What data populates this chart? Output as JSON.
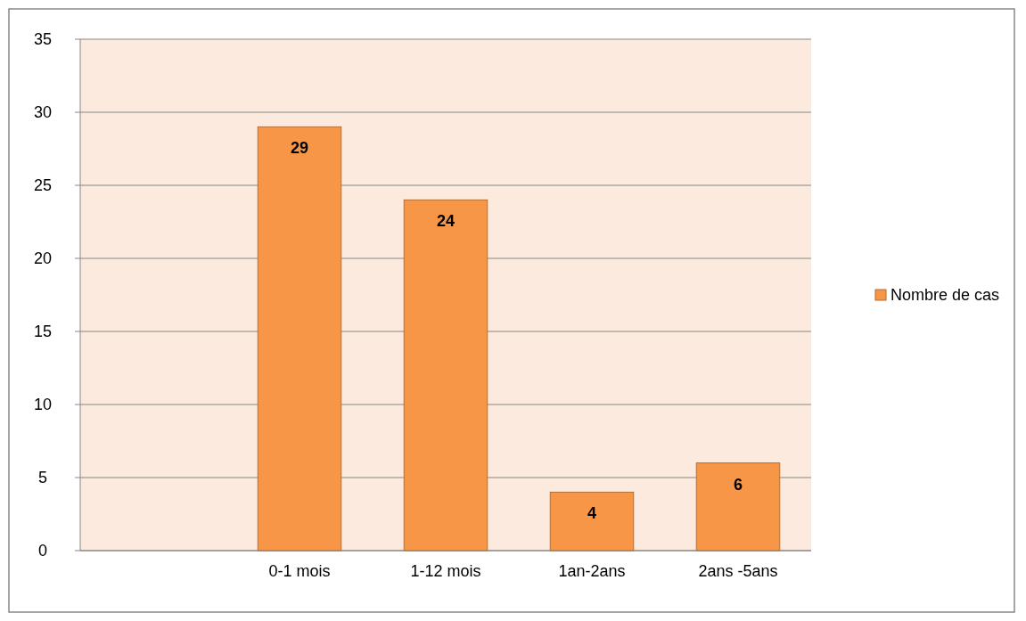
{
  "chart_data": {
    "type": "bar",
    "categories": [
      null,
      "0-1 mois",
      "1-12 mois",
      "1an-2ans",
      "2ans -5ans"
    ],
    "series": [
      {
        "name": "Nombre de cas",
        "color": "#f79646",
        "values": [
          null,
          29,
          24,
          4,
          6
        ]
      }
    ],
    "ylim": [
      0,
      35
    ],
    "yticks": [
      0,
      5,
      10,
      15,
      20,
      25,
      30,
      35
    ],
    "grid": "y",
    "legend": "right",
    "data_labels": true
  }
}
